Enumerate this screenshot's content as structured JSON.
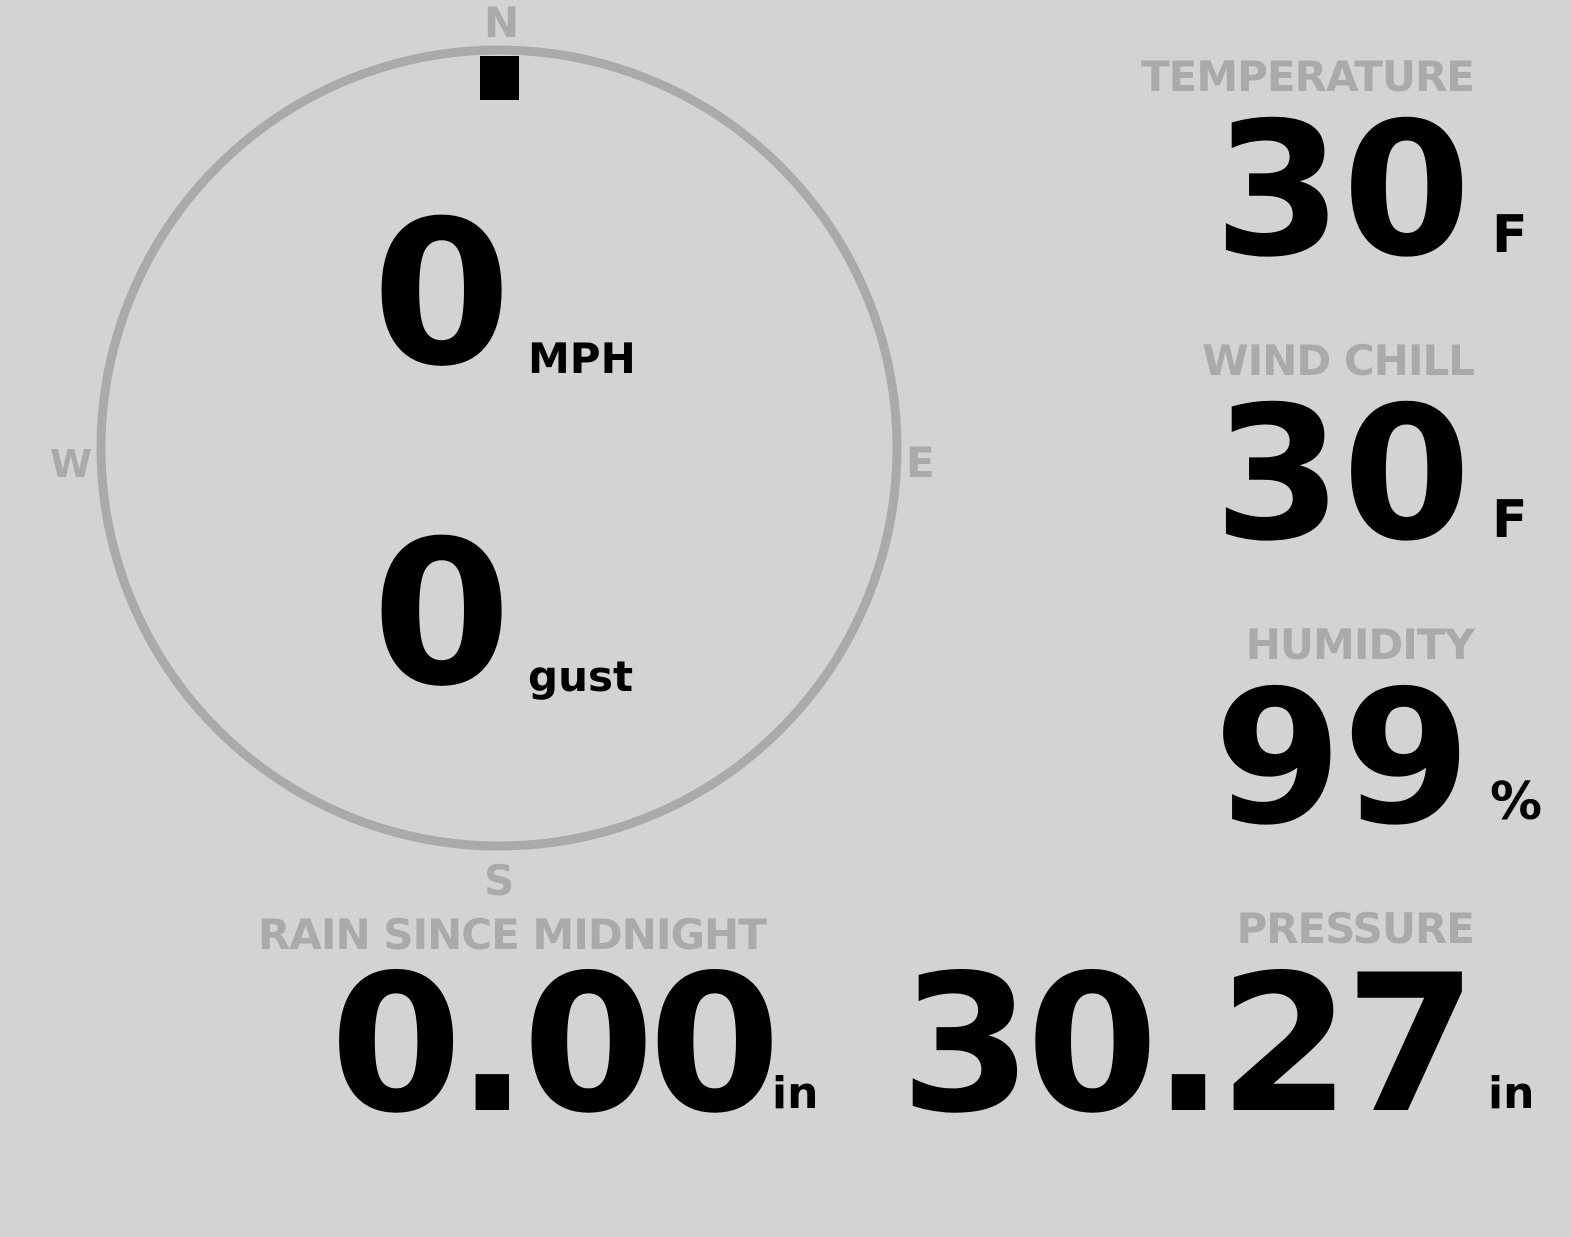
{
  "wind": {
    "speed": "0",
    "speed_unit": "MPH",
    "gust": "0",
    "gust_unit": "gust",
    "direction_degrees": 0,
    "compass": {
      "n": "N",
      "e": "E",
      "s": "S",
      "w": "W"
    }
  },
  "temperature": {
    "label": "TEMPERATURE",
    "value": "30",
    "unit": "F"
  },
  "wind_chill": {
    "label": "WIND CHILL",
    "value": "30",
    "unit": "F"
  },
  "humidity": {
    "label": "HUMIDITY",
    "value": "99",
    "unit": "%"
  },
  "rain": {
    "label": "RAIN SINCE MIDNIGHT",
    "value": "0.00",
    "unit": "in"
  },
  "pressure": {
    "label": "PRESSURE",
    "value": "30.27",
    "unit": "in"
  },
  "colors": {
    "background": "#d3d3d3",
    "label": "#aaaaaa",
    "value": "#000000"
  }
}
